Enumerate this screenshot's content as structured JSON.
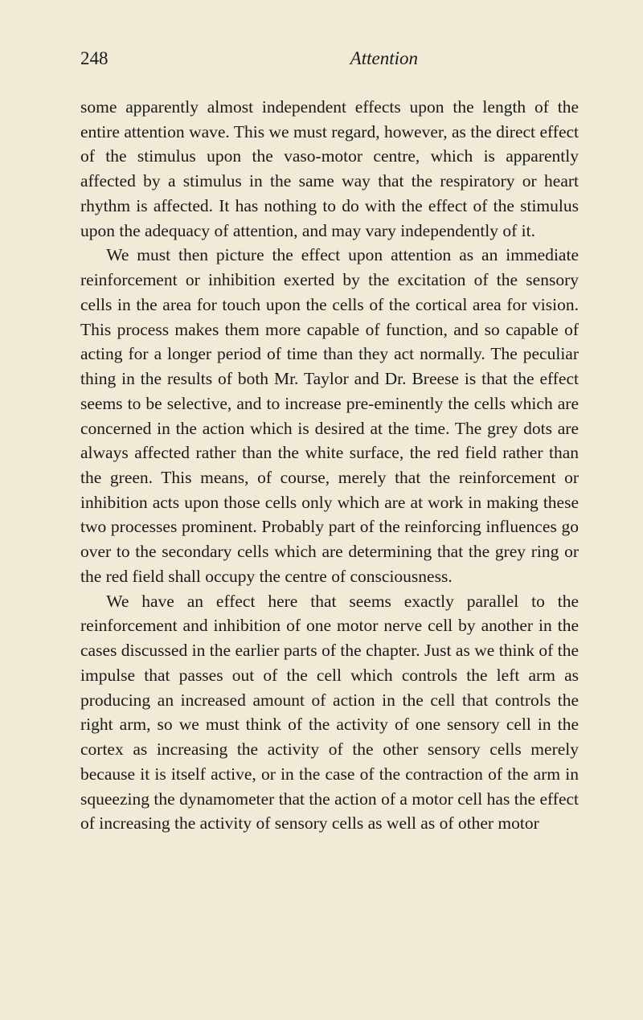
{
  "header": {
    "page_number": "248",
    "running_title": "Attention"
  },
  "paragraphs": {
    "p1": "some apparently almost independent effects upon the length of the entire attention wave. This we must regard, however, as the direct effect of the stimulus upon the vaso-motor centre, which is apparently affected by a stimulus in the same way that the respiratory or heart rhythm is affected. It has nothing to do with the effect of the stimulus upon the adequacy of attention, and may vary independently of it.",
    "p2": "We must then picture the effect upon attention as an immediate reinforcement or inhibition exerted by the excitation of the sensory cells in the area for touch upon the cells of the cortical area for vision. This process makes them more capable of function, and so capable of acting for a longer period of time than they act normally. The peculiar thing in the results of both Mr. Taylor and Dr. Breese is that the effect seems to be selective, and to increase pre-eminently the cells which are concerned in the action which is desired at the time. The grey dots are always affected rather than the white surface, the red field rather than the green. This means, of course, merely that the reinforcement or inhibition acts upon those cells only which are at work in making these two processes prominent. Probably part of the reinforcing influences go over to the secondary cells which are determining that the grey ring or the red field shall occupy the centre of consciousness.",
    "p3": "We have an effect here that seems exactly parallel to the reinforcement and inhibition of one motor nerve cell by another in the cases discussed in the earlier parts of the chapter. Just as we think of the impulse that passes out of the cell which controls the left arm as producing an increased amount of action in the cell that controls the right arm, so we must think of the activity of one sensory cell in the cortex as increasing the activity of the other sensory cells merely because it is itself active, or in the case of the contraction of the arm in squeezing the dynamometer that the action of a motor cell has the effect of increasing the activity of sensory cells as well as of other motor"
  }
}
